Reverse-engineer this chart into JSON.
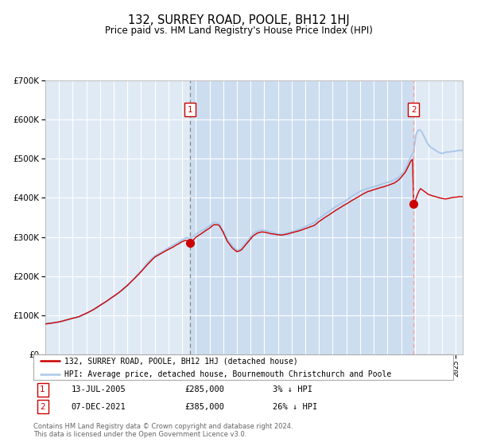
{
  "title": "132, SURREY ROAD, POOLE, BH12 1HJ",
  "subtitle": "Price paid vs. HM Land Registry's House Price Index (HPI)",
  "legend_line1": "132, SURREY ROAD, POOLE, BH12 1HJ (detached house)",
  "legend_line2": "HPI: Average price, detached house, Bournemouth Christchurch and Poole",
  "annotation1_date": "13-JUL-2005",
  "annotation1_price": "£285,000",
  "annotation1_hpi": "3% ↓ HPI",
  "annotation2_date": "07-DEC-2021",
  "annotation2_price": "£385,000",
  "annotation2_hpi": "26% ↓ HPI",
  "footer1": "Contains HM Land Registry data © Crown copyright and database right 2024.",
  "footer2": "This data is licensed under the Open Government Licence v3.0.",
  "ylim": [
    0,
    700000
  ],
  "background_color": "#ffffff",
  "plot_bg_color": "#e0eaf5",
  "grid_color": "#ffffff",
  "hpi_line_color": "#aac8e8",
  "price_line_color": "#cc0000",
  "marker_color": "#cc0000",
  "vline1_color": "#999999",
  "vline2_color": "#ffaaaa",
  "shade_color": "#d8e8f5",
  "sale1_year": 2005.583,
  "sale1_price": 285000,
  "sale2_year": 2021.917,
  "sale2_price": 385000,
  "xmin": 1995.0,
  "xmax": 2025.5
}
